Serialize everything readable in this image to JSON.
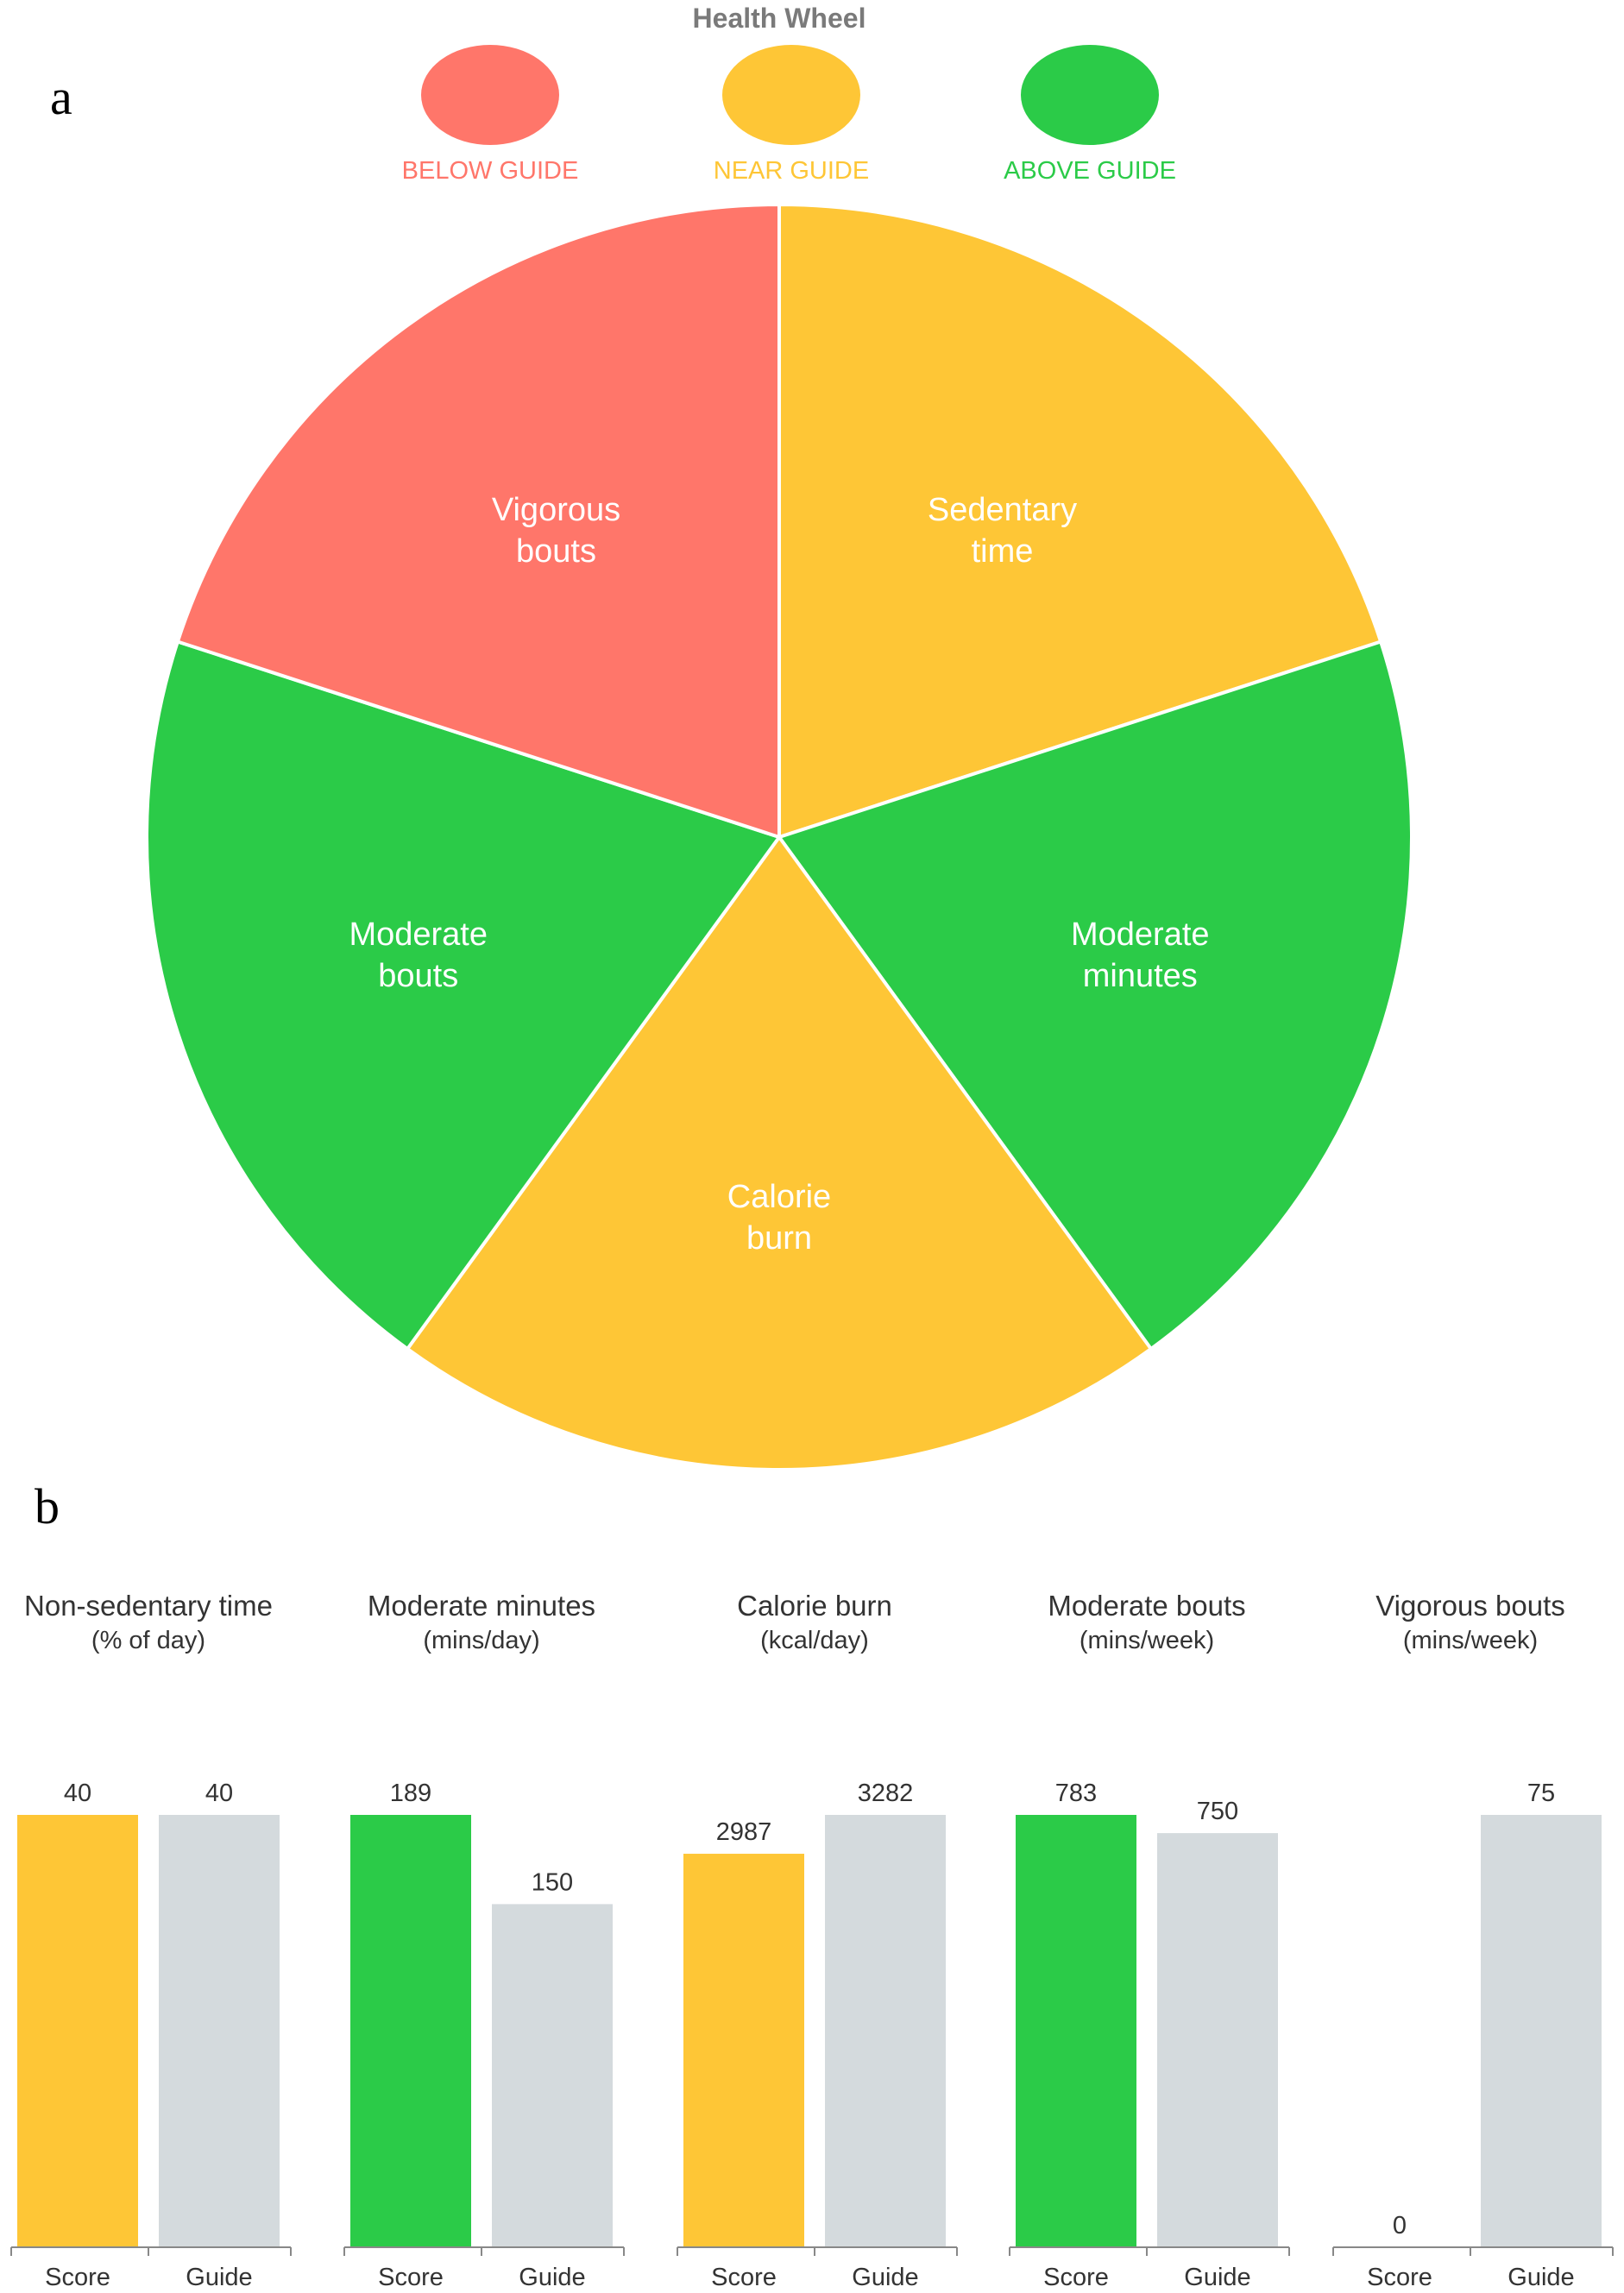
{
  "panel_a_letter": "a",
  "panel_b_letter": "b",
  "chart_data": [
    {
      "type": "pie",
      "title": "Health Wheel",
      "legend": [
        {
          "label": "BELOW GUIDE",
          "color": "#ff766a"
        },
        {
          "label": "NEAR GUIDE",
          "color": "#fec636"
        },
        {
          "label": "ABOVE GUIDE",
          "color": "#2bcb48"
        }
      ],
      "slices": [
        {
          "label": [
            "Sedentary",
            "time"
          ],
          "value": 1,
          "status": "NEAR GUIDE",
          "color": "#fec636"
        },
        {
          "label": [
            "Moderate",
            "minutes"
          ],
          "value": 1,
          "status": "ABOVE GUIDE",
          "color": "#2bcb48"
        },
        {
          "label": [
            "Calorie",
            "burn"
          ],
          "value": 1,
          "status": "NEAR GUIDE",
          "color": "#fec636"
        },
        {
          "label": [
            "Moderate",
            "bouts"
          ],
          "value": 1,
          "status": "ABOVE GUIDE",
          "color": "#2bcb48"
        },
        {
          "label": [
            "Vigorous",
            "bouts"
          ],
          "value": 1,
          "status": "BELOW GUIDE",
          "color": "#ff766a"
        }
      ]
    },
    {
      "type": "bar",
      "categories": [
        "Score",
        "Guide"
      ],
      "guide_color": "#d4dadd",
      "panels": [
        {
          "title": "Non-sedentary time",
          "unit": "(% of day)",
          "score": 40,
          "guide": 40,
          "score_color": "#fec636"
        },
        {
          "title": "Moderate minutes",
          "unit": "(mins/day)",
          "score": 189,
          "guide": 150,
          "score_color": "#2bcb48"
        },
        {
          "title": "Calorie burn",
          "unit": "(kcal/day)",
          "score": 2987,
          "guide": 3282,
          "score_color": "#fec636"
        },
        {
          "title": "Moderate bouts",
          "unit": "(mins/week)",
          "score": 783,
          "guide": 750,
          "score_color": "#2bcb48"
        },
        {
          "title": "Vigorous bouts",
          "unit": "(mins/week)",
          "score": 0,
          "guide": 75,
          "score_color": "#ff766a"
        }
      ]
    }
  ]
}
